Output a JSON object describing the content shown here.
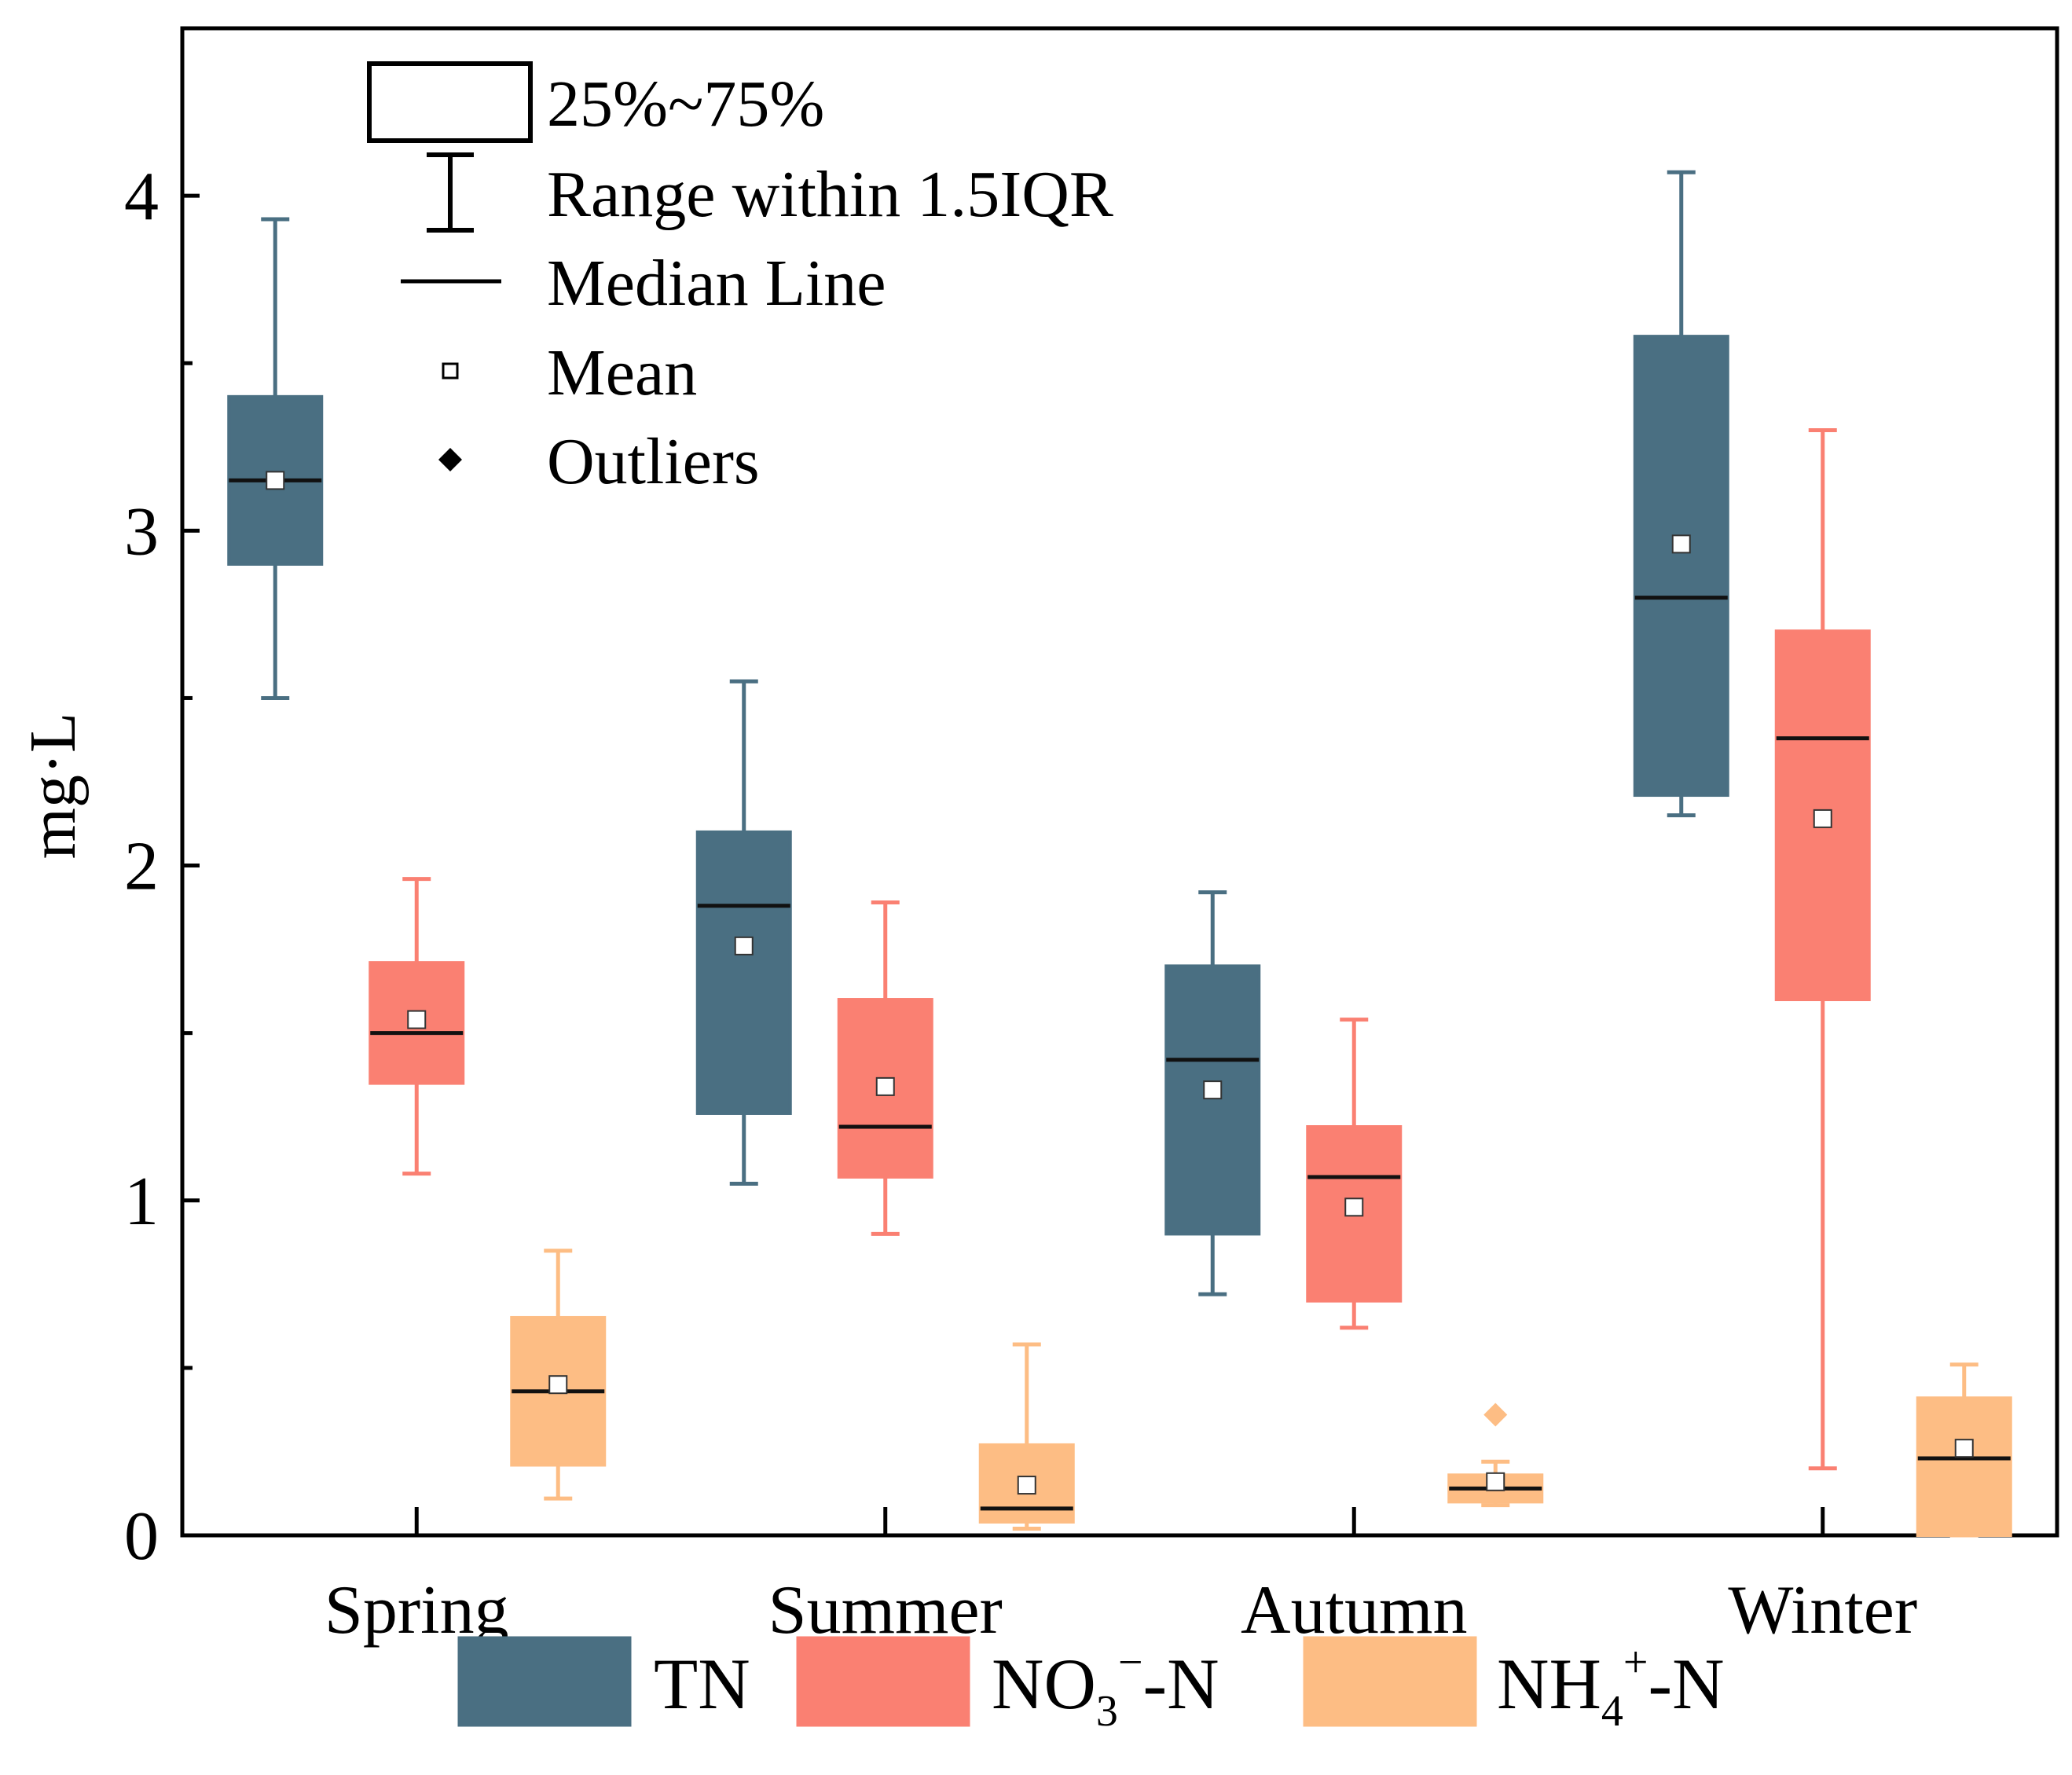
{
  "chart_data": {
    "type": "box",
    "title": "",
    "xlabel": "",
    "ylabel": "mg·L",
    "ylim": [
      0,
      4.5
    ],
    "yticks": [
      0,
      1,
      2,
      3,
      4
    ],
    "categories": [
      "Spring",
      "Summer",
      "Autumn",
      "Winter"
    ],
    "series": [
      {
        "name": "TN",
        "color": "#4a6f82",
        "boxes": [
          {
            "category": "Spring",
            "q1": 2.9,
            "median": 3.15,
            "q3": 3.4,
            "whisker_low": 2.5,
            "whisker_high": 3.93,
            "mean": 3.15,
            "outliers": []
          },
          {
            "category": "Summer",
            "q1": 1.26,
            "median": 1.88,
            "q3": 2.1,
            "whisker_low": 1.05,
            "whisker_high": 2.55,
            "mean": 1.76,
            "outliers": []
          },
          {
            "category": "Autumn",
            "q1": 0.9,
            "median": 1.42,
            "q3": 1.7,
            "whisker_low": 0.72,
            "whisker_high": 1.92,
            "mean": 1.33,
            "outliers": []
          },
          {
            "category": "Winter",
            "q1": 2.21,
            "median": 2.8,
            "q3": 3.58,
            "whisker_low": 2.15,
            "whisker_high": 4.07,
            "mean": 2.96,
            "outliers": []
          }
        ]
      },
      {
        "name": "NO3−-N",
        "color": "#fa8072",
        "boxes": [
          {
            "category": "Spring",
            "q1": 1.35,
            "median": 1.5,
            "q3": 1.71,
            "whisker_low": 1.08,
            "whisker_high": 1.96,
            "mean": 1.54,
            "outliers": []
          },
          {
            "category": "Summer",
            "q1": 1.07,
            "median": 1.22,
            "q3": 1.6,
            "whisker_low": 0.9,
            "whisker_high": 1.89,
            "mean": 1.34,
            "outliers": []
          },
          {
            "category": "Autumn",
            "q1": 0.7,
            "median": 1.07,
            "q3": 1.22,
            "whisker_low": 0.62,
            "whisker_high": 1.54,
            "mean": 0.98,
            "outliers": []
          },
          {
            "category": "Winter",
            "q1": 1.6,
            "median": 2.38,
            "q3": 2.7,
            "whisker_low": 0.2,
            "whisker_high": 3.3,
            "mean": 2.14,
            "outliers": []
          }
        ]
      },
      {
        "name": "NH4+-N",
        "color": "#fdbd84",
        "boxes": [
          {
            "category": "Spring",
            "q1": 0.21,
            "median": 0.43,
            "q3": 0.65,
            "whisker_low": 0.11,
            "whisker_high": 0.85,
            "mean": 0.45,
            "outliers": []
          },
          {
            "category": "Summer",
            "q1": 0.04,
            "median": 0.08,
            "q3": 0.27,
            "whisker_low": 0.02,
            "whisker_high": 0.57,
            "mean": 0.15,
            "outliers": []
          },
          {
            "category": "Autumn",
            "q1": 0.1,
            "median": 0.14,
            "q3": 0.18,
            "whisker_low": 0.09,
            "whisker_high": 0.22,
            "mean": 0.16,
            "outliers": [
              0.36
            ]
          },
          {
            "category": "Winter",
            "q1": 0.0,
            "median": 0.23,
            "q3": 0.41,
            "whisker_low": 0.0,
            "whisker_high": 0.51,
            "mean": 0.26,
            "outliers": []
          }
        ]
      }
    ],
    "style_legend": [
      {
        "key": "box",
        "label": "25%~75%"
      },
      {
        "key": "whisker",
        "label": "Range within 1.5IQR"
      },
      {
        "key": "median",
        "label": "Median Line"
      },
      {
        "key": "mean",
        "label": "Mean"
      },
      {
        "key": "outlier",
        "label": "Outliers"
      }
    ],
    "series_legend": [
      {
        "base": "TN",
        "sup": "",
        "sub": "",
        "tail": ""
      },
      {
        "base": "NO",
        "sub": "3",
        "sup": "−",
        "tail": "-N"
      },
      {
        "base": "NH",
        "sub": "4",
        "sup": "+",
        "tail": "-N"
      }
    ]
  }
}
